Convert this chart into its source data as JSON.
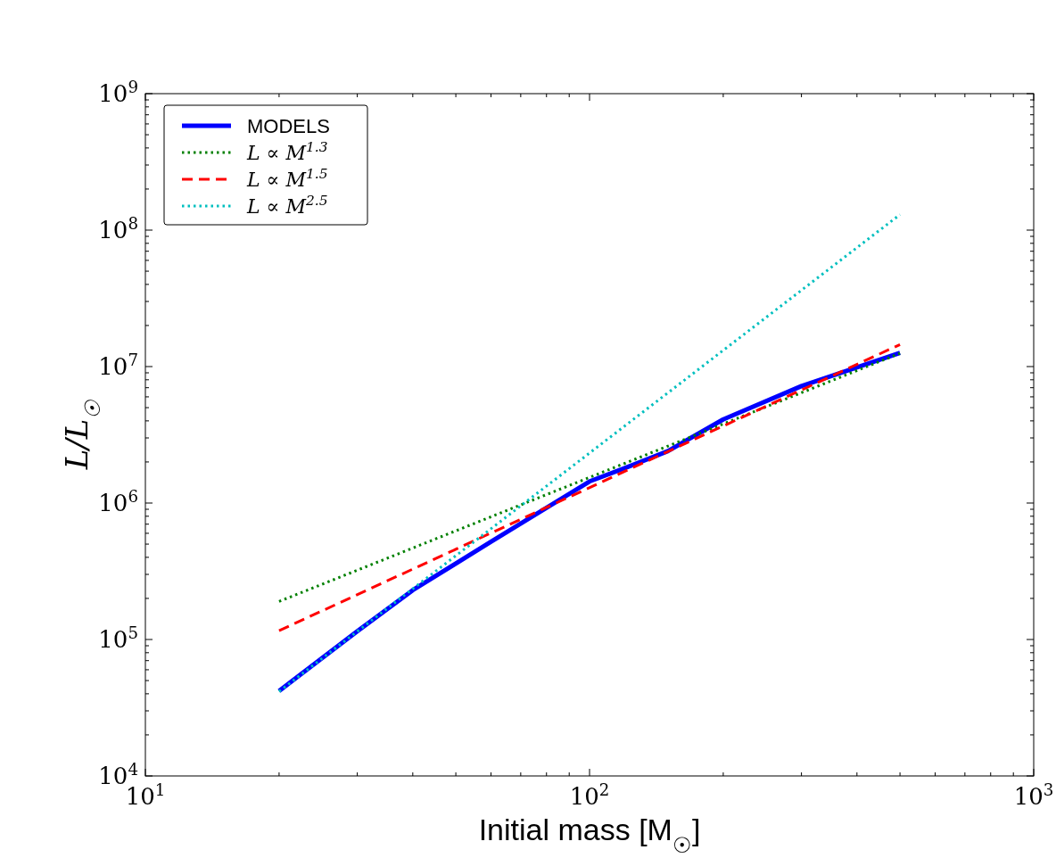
{
  "chart_data": {
    "type": "line",
    "xlabel": "Initial mass [M$_{☉}$]",
    "ylabel": "L/L$_{☉}$",
    "log": "xy",
    "grid": false,
    "legend": "top left",
    "marker": "none",
    "xlim": [
      10,
      1000
    ],
    "ylim": [
      10000,
      1000000000
    ],
    "xticks": [
      {
        "value": 10,
        "label": "10$^{1}$"
      },
      {
        "value": 20,
        "label": null
      },
      {
        "value": 30,
        "label": null
      },
      {
        "value": 40,
        "label": null
      },
      {
        "value": 50,
        "label": null
      },
      {
        "value": 60,
        "label": null
      },
      {
        "value": 70,
        "label": null
      },
      {
        "value": 80,
        "label": null
      },
      {
        "value": 90,
        "label": null
      },
      {
        "value": 100,
        "label": "10$^{2}$"
      },
      {
        "value": 200,
        "label": null
      },
      {
        "value": 300,
        "label": null
      },
      {
        "value": 400,
        "label": null
      },
      {
        "value": 500,
        "label": null
      },
      {
        "value": 600,
        "label": null
      },
      {
        "value": 700,
        "label": null
      },
      {
        "value": 800,
        "label": null
      },
      {
        "value": 900,
        "label": null
      },
      {
        "value": 1000,
        "label": "10$^{3}$"
      }
    ],
    "yticks": [
      {
        "value": 10000,
        "label": "10$^{4}$"
      },
      {
        "value": 20000,
        "label": null
      },
      {
        "value": 30000,
        "label": null
      },
      {
        "value": 40000,
        "label": null
      },
      {
        "value": 50000,
        "label": null
      },
      {
        "value": 60000,
        "label": null
      },
      {
        "value": 70000,
        "label": null
      },
      {
        "value": 80000,
        "label": null
      },
      {
        "value": 90000,
        "label": null
      },
      {
        "value": 100000,
        "label": "10$^{5}$"
      },
      {
        "value": 200000,
        "label": null
      },
      {
        "value": 300000,
        "label": null
      },
      {
        "value": 400000,
        "label": null
      },
      {
        "value": 500000,
        "label": null
      },
      {
        "value": 600000,
        "label": null
      },
      {
        "value": 700000,
        "label": null
      },
      {
        "value": 800000,
        "label": null
      },
      {
        "value": 900000,
        "label": null
      },
      {
        "value": 1000000,
        "label": "10$^{6}$"
      },
      {
        "value": 2000000,
        "label": null
      },
      {
        "value": 3000000,
        "label": null
      },
      {
        "value": 4000000,
        "label": null
      },
      {
        "value": 5000000,
        "label": null
      },
      {
        "value": 6000000,
        "label": null
      },
      {
        "value": 7000000,
        "label": null
      },
      {
        "value": 8000000,
        "label": null
      },
      {
        "value": 9000000,
        "label": null
      },
      {
        "value": 10000000,
        "label": "10$^{7}$"
      },
      {
        "value": 20000000,
        "label": null
      },
      {
        "value": 30000000,
        "label": null
      },
      {
        "value": 40000000,
        "label": null
      },
      {
        "value": 50000000,
        "label": null
      },
      {
        "value": 60000000,
        "label": null
      },
      {
        "value": 70000000,
        "label": null
      },
      {
        "value": 80000000,
        "label": null
      },
      {
        "value": 90000000,
        "label": null
      },
      {
        "value": 100000000,
        "label": "10$^{8}$"
      },
      {
        "value": 200000000,
        "label": null
      },
      {
        "value": 300000000,
        "label": null
      },
      {
        "value": 400000000,
        "label": null
      },
      {
        "value": 500000000,
        "label": null
      },
      {
        "value": 600000000,
        "label": null
      },
      {
        "value": 700000000,
        "label": null
      },
      {
        "value": 800000000,
        "label": null
      },
      {
        "value": 900000000,
        "label": null
      },
      {
        "value": 1000000000,
        "label": "10$^{9}$"
      }
    ],
    "series": [
      {
        "name": "MODELS",
        "color": "#0000ff",
        "line_style": "solid",
        "x": [
          20,
          30,
          40,
          60,
          100,
          120,
          150,
          200,
          300,
          500
        ],
        "values": [
          42000,
          115000,
          230000,
          520000,
          1440000,
          1800000,
          2400000,
          4100000,
          7200000,
          12600000
        ]
      },
      {
        "name": "L ∝ M$^{1.3}$",
        "color": "#008000",
        "line_style": "dotted",
        "x": [
          20,
          500
        ],
        "values": [
          190000,
          12500000
        ]
      },
      {
        "name": "L ∝ M$^{1.5}$",
        "color": "#ff0000",
        "line_style": "dashed",
        "x": [
          20,
          500
        ],
        "values": [
          116000,
          14500000
        ]
      },
      {
        "name": "L ∝ M$^{2.5}$",
        "color": "#00bfbf",
        "line_style": "dotted",
        "x": [
          20,
          500
        ],
        "values": [
          41600,
          130000000
        ]
      }
    ]
  }
}
